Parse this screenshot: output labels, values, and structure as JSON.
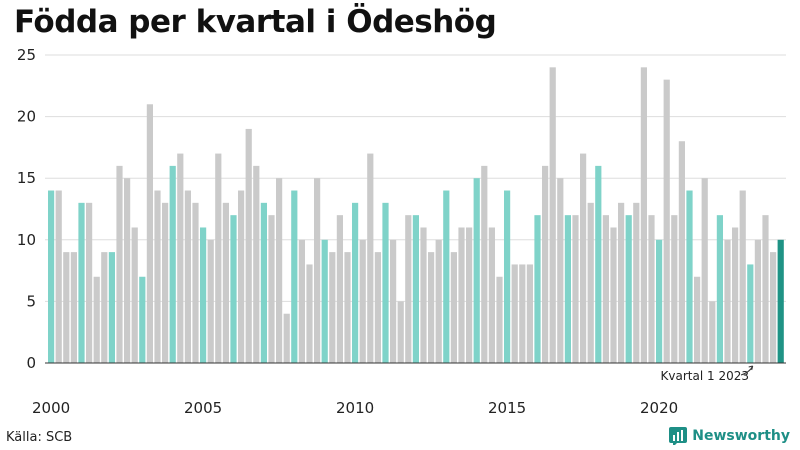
{
  "title": "Födda per kvartal i Ödeshög",
  "source": "Källa: SCB",
  "brand": "Newsworthy",
  "annotation": "Kvartal 1 2023",
  "colors": {
    "q1": "#7fd3c9",
    "other": "#cacaca",
    "latest": "#1f9385",
    "grid": "#dddddd",
    "axis": "#333333"
  },
  "chart_data": {
    "type": "bar",
    "ylim": [
      0,
      25
    ],
    "yticks": [
      0,
      5,
      10,
      15,
      20,
      25
    ],
    "xticks": [
      "2000",
      "2005",
      "2010",
      "2015",
      "2020"
    ],
    "start_year": 2000,
    "grid": true,
    "highlight": "first quarter of each year",
    "values": [
      14,
      14,
      9,
      9,
      13,
      13,
      7,
      9,
      9,
      16,
      15,
      11,
      7,
      21,
      14,
      13,
      16,
      17,
      14,
      13,
      11,
      10,
      17,
      13,
      12,
      14,
      19,
      16,
      13,
      12,
      15,
      4,
      14,
      10,
      8,
      15,
      10,
      9,
      12,
      9,
      13,
      10,
      17,
      9,
      13,
      10,
      5,
      12,
      12,
      11,
      9,
      10,
      14,
      9,
      11,
      11,
      15,
      16,
      11,
      7,
      14,
      8,
      8,
      8,
      12,
      16,
      24,
      15,
      12,
      12,
      17,
      13,
      16,
      12,
      11,
      13,
      12,
      13,
      24,
      12,
      10,
      23,
      12,
      18,
      14,
      7,
      15,
      5,
      12,
      10,
      11,
      14,
      8,
      10,
      12,
      9,
      10
    ]
  }
}
